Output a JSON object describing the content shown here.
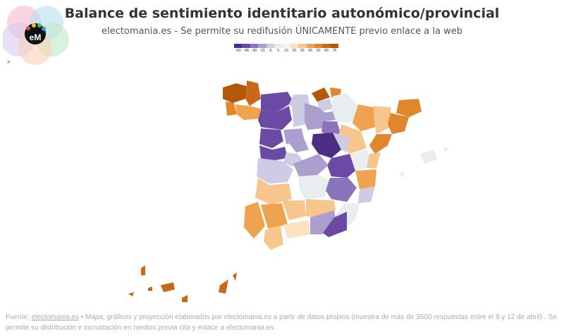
{
  "header": {
    "title": "Balance de sentimiento identitario autonómico/provincial",
    "subtitle": "electomania.es - Se permite su redifusión ÚNICAMENTE previo enlace a la web"
  },
  "logo": {
    "text": "eM",
    "icon": "electomania-logo"
  },
  "toolbar": {
    "zoom_icon": "search-icon",
    "zoom_glyph": "⌕"
  },
  "legend": {
    "ticks": [
      "-60",
      "-45",
      "-30",
      "-15",
      "-5",
      "5",
      "15",
      "25",
      "35",
      "45",
      "55",
      "65",
      "75"
    ],
    "colors": [
      "#4b2e83",
      "#6a4aa5",
      "#8a74bb",
      "#ab9fd0",
      "#cfcbe4",
      "#e8edf0",
      "#f2f2ee",
      "#fbe1c2",
      "#f7c68c",
      "#efa24f",
      "#e0862c",
      "#c9681a",
      "#b35806"
    ]
  },
  "footer": {
    "source_prefix": "Fuente: ",
    "source_link": "electomania.es",
    "source_text": " • Mapa, gráficos y proyección elaborados por electomania.es a partir de datos propios (muestra de más de 3500 respuestas entre el 8 y 12 de abril) . Se permite su distribución e incrustación en medios previa cita y enlace a electomania.es"
  }
}
